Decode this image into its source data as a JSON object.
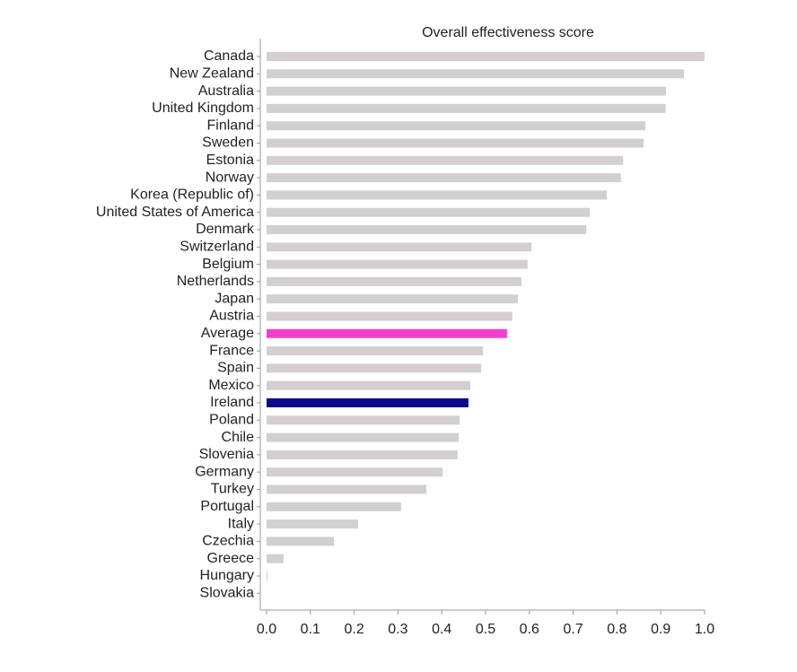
{
  "chart_data": {
    "type": "hbar",
    "title": "Overall effectiveness score",
    "categories": [
      "Canada",
      "New Zealand",
      "Australia",
      "United Kingdom",
      "Finland",
      "Sweden",
      "Estonia",
      "Norway",
      "Korea (Republic of)",
      "United States of America",
      "Denmark",
      "Switzerland",
      "Belgium",
      "Netherlands",
      "Japan",
      "Austria",
      "Average",
      "France",
      "Spain",
      "Mexico",
      "Ireland",
      "Poland",
      "Chile",
      "Slovenia",
      "Germany",
      "Turkey",
      "Portugal",
      "Italy",
      "Czechia",
      "Greece",
      "Hungary",
      "Slovakia"
    ],
    "values": [
      1.0,
      0.953,
      0.912,
      0.911,
      0.865,
      0.861,
      0.814,
      0.809,
      0.777,
      0.738,
      0.73,
      0.605,
      0.596,
      0.582,
      0.574,
      0.561,
      0.549,
      0.494,
      0.49,
      0.465,
      0.461,
      0.441,
      0.439,
      0.436,
      0.402,
      0.365,
      0.307,
      0.209,
      0.154,
      0.039,
      0.002,
      0
    ],
    "colors": [
      "#d4cfcf",
      "#d4cfcf",
      "#d4cfcf",
      "#d4cfcf",
      "#d4cfcf",
      "#d4cfcf",
      "#d4cfcf",
      "#d4cfcf",
      "#d4cfcf",
      "#d4cfcf",
      "#d4cfcf",
      "#d4cfcf",
      "#d4cfcf",
      "#d4cfcf",
      "#d4cfcf",
      "#d4cfcf",
      "#f23fce",
      "#d4cfcf",
      "#d4cfcf",
      "#d4cfcf",
      "#0a0a8c",
      "#d4cfcf",
      "#d4cfcf",
      "#d4cfcf",
      "#d4cfcf",
      "#d4cfcf",
      "#d4cfcf",
      "#d4cfcf",
      "#d4cfcf",
      "#d4cfcf",
      "#d4cfcf",
      "#d4cfcf"
    ],
    "xlim": [
      0,
      1
    ],
    "xticks": [
      {
        "value": 0,
        "label": "0.0"
      },
      0.1,
      0.2,
      0.3,
      0.4,
      0.5,
      0.6,
      0.7,
      0.8,
      0.9,
      {
        "value": 1,
        "label": "1.0"
      }
    ]
  }
}
